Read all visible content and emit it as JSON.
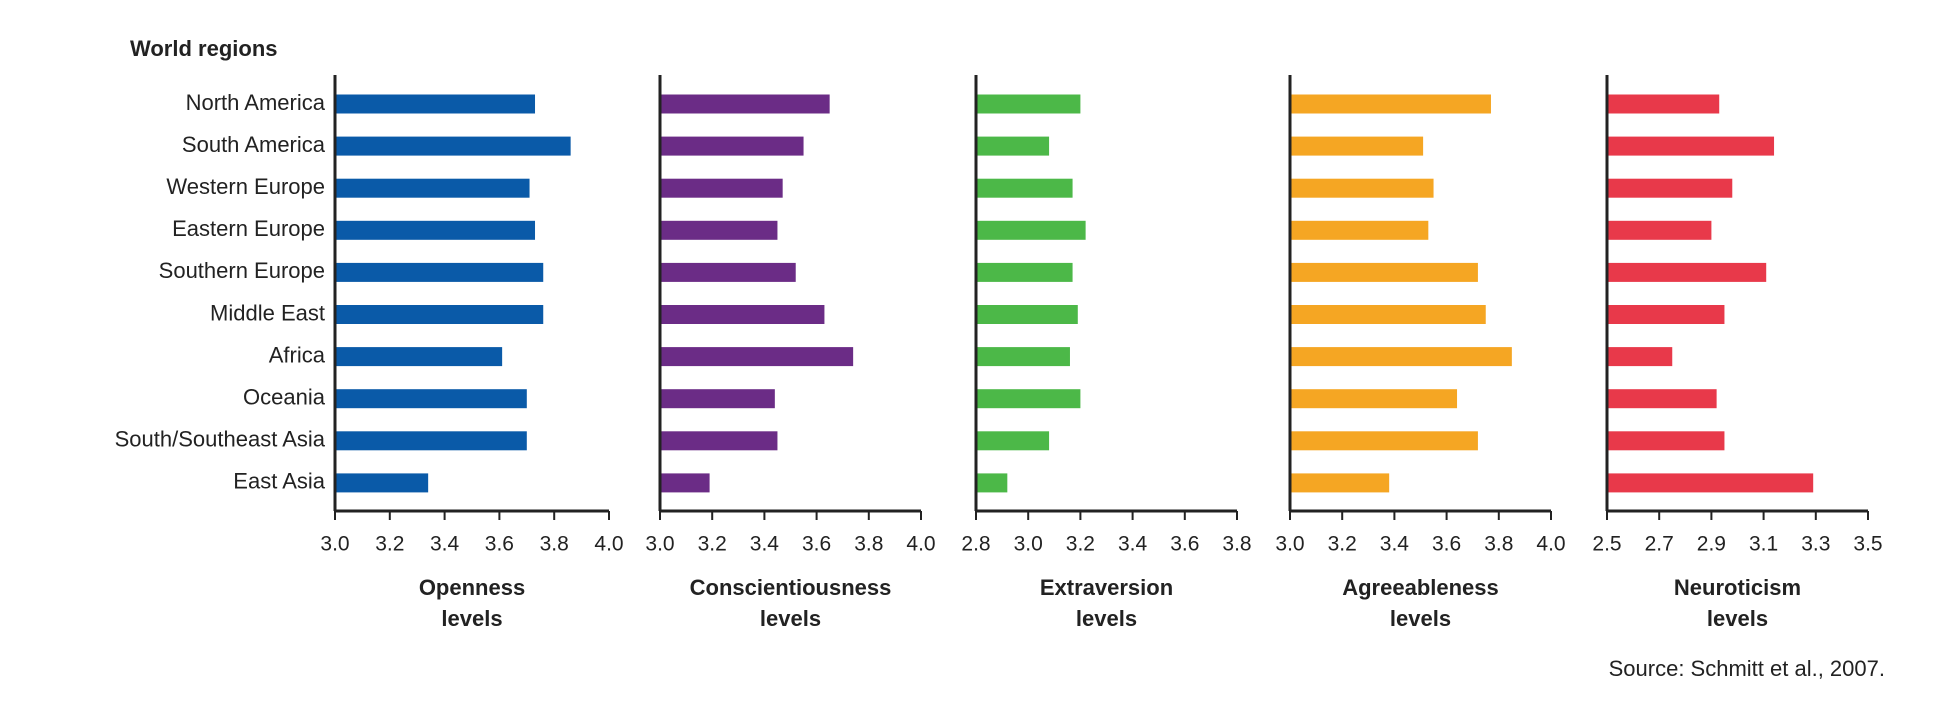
{
  "title": "World regions",
  "source": "Source: Schmitt et al., 2007.",
  "chart_data": [
    {
      "type": "bar",
      "orientation": "horizontal",
      "xlabel": [
        "Openness",
        "levels"
      ],
      "color": "#0a5aa8",
      "categories": [
        "North America",
        "South America",
        "Western Europe",
        "Eastern Europe",
        "Southern Europe",
        "Middle East",
        "Africa",
        "Oceania",
        "South/Southeast Asia",
        "East Asia"
      ],
      "values": [
        3.73,
        3.86,
        3.71,
        3.73,
        3.76,
        3.76,
        3.61,
        3.7,
        3.7,
        3.34
      ],
      "xlim": [
        3.0,
        4.0
      ],
      "xticks": [
        {
          "value": 3.0,
          "label": "3.0"
        },
        3.2,
        3.4,
        3.6,
        3.8,
        {
          "value": 4.0,
          "label": "4.0"
        }
      ]
    },
    {
      "type": "bar",
      "orientation": "horizontal",
      "xlabel": [
        "Conscientiousness",
        "levels"
      ],
      "color": "#6b2c86",
      "values": [
        3.65,
        3.55,
        3.47,
        3.45,
        3.52,
        3.63,
        3.74,
        3.44,
        3.45,
        3.19
      ],
      "xlim": [
        3.0,
        4.0
      ],
      "xticks": [
        {
          "value": 3.0,
          "label": "3.0"
        },
        3.2,
        3.4,
        3.6,
        3.8,
        {
          "value": 4.0,
          "label": "4.0"
        }
      ]
    },
    {
      "type": "bar",
      "orientation": "horizontal",
      "xlabel": [
        "Extraversion",
        "levels"
      ],
      "color": "#4cb848",
      "values": [
        3.2,
        3.08,
        3.17,
        3.22,
        3.17,
        3.19,
        3.16,
        3.2,
        3.08,
        2.92
      ],
      "xlim": [
        2.8,
        3.8
      ],
      "xticks": [
        2.8,
        {
          "value": 3.0,
          "label": "3.0"
        },
        3.2,
        3.4,
        3.6,
        3.8
      ]
    },
    {
      "type": "bar",
      "orientation": "horizontal",
      "xlabel": [
        "Agreeableness",
        "levels"
      ],
      "color": "#f5a623",
      "values": [
        3.77,
        3.51,
        3.55,
        3.53,
        3.72,
        3.75,
        3.85,
        3.64,
        3.72,
        3.38
      ],
      "xlim": [
        3.0,
        4.0
      ],
      "xticks": [
        {
          "value": 3.0,
          "label": "3.0"
        },
        3.2,
        3.4,
        3.6,
        3.8,
        {
          "value": 4.0,
          "label": "4.0"
        }
      ]
    },
    {
      "type": "bar",
      "orientation": "horizontal",
      "xlabel": [
        "Neuroticism",
        "levels"
      ],
      "color": "#e8394a",
      "values": [
        2.93,
        3.14,
        2.98,
        2.9,
        3.11,
        2.95,
        2.75,
        2.92,
        2.95,
        3.29
      ],
      "xlim": [
        2.5,
        3.5
      ],
      "xticks": [
        2.5,
        2.7,
        2.9,
        3.1,
        3.3,
        3.5
      ]
    }
  ]
}
